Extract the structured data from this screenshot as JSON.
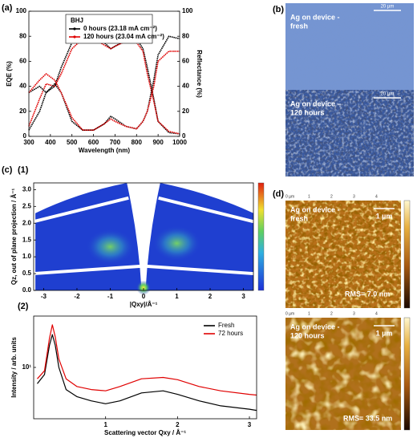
{
  "chart_data": [
    {
      "type": "line",
      "panel_label": "(a)",
      "x": [
        300,
        350,
        380,
        420,
        450,
        500,
        550,
        600,
        650,
        680,
        700,
        750,
        800,
        830,
        850,
        880,
        900,
        950,
        1000
      ],
      "xlim": [
        300,
        1000
      ],
      "xticks": [
        300,
        400,
        500,
        600,
        700,
        800,
        900,
        1000
      ],
      "ylim": [
        0,
        100
      ],
      "yticks": [
        0,
        20,
        40,
        60,
        80,
        100
      ],
      "y2lim": [
        0,
        100
      ],
      "y2ticks": [
        0,
        20,
        40,
        60,
        80,
        100
      ],
      "xlabel": "Wavelength (nm)",
      "ylabel": "EQE (%)",
      "y2label": "Reflectance (%)",
      "legend_title": "BHJ",
      "legend_loc": "upper center",
      "series": [
        {
          "name": "0 hours (23.18 mA cm⁻²)",
          "color": "#000000",
          "values": [
            5,
            20,
            35,
            40,
            55,
            75,
            82,
            82,
            75,
            70,
            72,
            77,
            78,
            70,
            55,
            30,
            12,
            3,
            2
          ]
        },
        {
          "name": "120 hours (23.04 mA cm⁻²)",
          "color": "#e00000",
          "values": [
            8,
            30,
            42,
            40,
            50,
            70,
            78,
            78,
            73,
            70,
            72,
            76,
            75,
            68,
            50,
            28,
            12,
            4,
            2
          ]
        },
        {
          "color": "#000000",
          "axis": "y2",
          "values": [
            35,
            40,
            35,
            42,
            35,
            12,
            5,
            5,
            10,
            16,
            14,
            8,
            6,
            12,
            20,
            45,
            65,
            80,
            78
          ]
        },
        {
          "color": "#e00000",
          "axis": "y2",
          "values": [
            35,
            45,
            50,
            45,
            35,
            15,
            5,
            5,
            10,
            14,
            12,
            8,
            6,
            12,
            20,
            40,
            60,
            68,
            68
          ]
        }
      ]
    },
    {
      "type": "map",
      "group_label": "(c)",
      "panel_label": "(1)",
      "xlim": [
        -3.3,
        3.3
      ],
      "xticks": [
        -3,
        -2,
        -1,
        0,
        1,
        2,
        3
      ],
      "ylim": [
        0,
        3.2
      ],
      "yticks": [
        {
          "value": 0,
          "label": "0.0"
        },
        0.5,
        {
          "value": 1,
          "label": "1.0"
        },
        1.5,
        {
          "value": 2,
          "label": "2.0"
        },
        2.5,
        {
          "value": 3,
          "label": "3.0"
        }
      ],
      "xlabel": "|Qxy|/Å⁻¹",
      "ylabel": "Qz, out of plane projection / Å⁻¹"
    },
    {
      "type": "line",
      "panel_label": "(2)",
      "yscale": "log",
      "x": [
        0.05,
        0.15,
        0.22,
        0.26,
        0.3,
        0.35,
        0.45,
        0.6,
        0.8,
        1.0,
        1.2,
        1.5,
        1.8,
        2.0,
        2.3,
        2.6,
        3.0,
        3.1
      ],
      "xlim": [
        0,
        3.1
      ],
      "xticks": [
        1,
        2,
        3
      ],
      "ylim": [
        2,
        50
      ],
      "yticks": [
        {
          "value": 10,
          "label": "10¹"
        }
      ],
      "xlabel": "Scattering vector Qxy / Å⁻¹",
      "ylabel": "Intensity / arb. units",
      "legend_loc": "upper right",
      "series": [
        {
          "name": "Fresh",
          "color": "#000000",
          "values": [
            6,
            8,
            20,
            28,
            20,
            10,
            5,
            4,
            3.5,
            3.2,
            3.5,
            4.5,
            4.8,
            4.3,
            3.5,
            3.0,
            2.7,
            2.6
          ]
        },
        {
          "name": "72 hours",
          "color": "#e00000",
          "values": [
            7,
            9,
            25,
            38,
            26,
            13,
            7,
            5.5,
            5,
            4.8,
            5.5,
            7,
            7.3,
            6.8,
            5.5,
            4.8,
            4.3,
            4.2
          ]
        }
      ]
    }
  ],
  "optical_images": {
    "panel_label": "(b)",
    "frames": [
      {
        "caption": [
          "Ag on device -",
          "fresh"
        ],
        "scale_bar": "20 µm"
      },
      {
        "caption": [
          "Ag on device –",
          "120 hours"
        ],
        "scale_bar": "20 µm"
      }
    ]
  },
  "afm_images": {
    "panel_label": "(d)",
    "frames": [
      {
        "caption": [
          "Ag on device -",
          "fresh"
        ],
        "scale_bar": "1 µm",
        "rms": "RMS= 7.0 nm",
        "xticks": [
          "0 µm",
          "1",
          "2",
          "3",
          "4"
        ]
      },
      {
        "caption": [
          "Ag on device -",
          "120 hours"
        ],
        "scale_bar": "1 µm",
        "rms": "RMS= 33.5 nm",
        "xticks": [
          "0 µm",
          "1",
          "2",
          "3",
          "4"
        ]
      }
    ]
  }
}
